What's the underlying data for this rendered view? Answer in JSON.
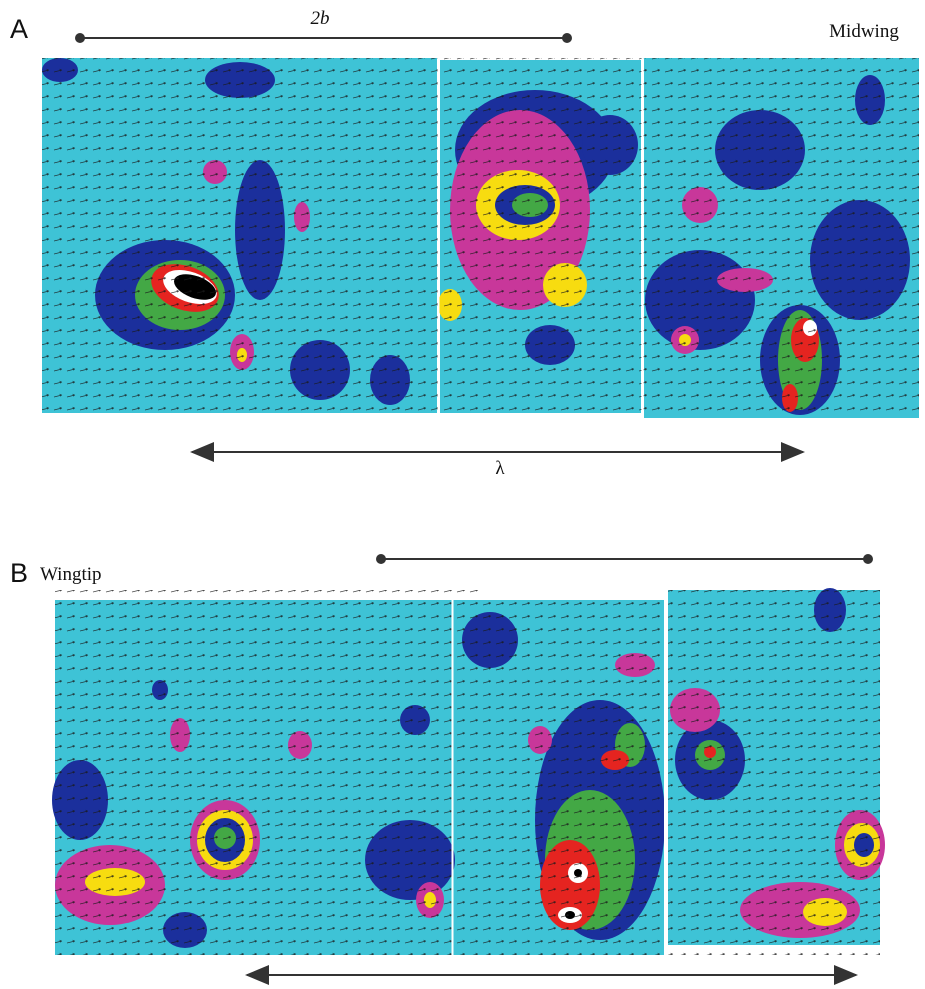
{
  "panels": [
    {
      "letter": "A",
      "scale_label": "2b",
      "title": "Midwing",
      "span_label": "λ"
    },
    {
      "letter": "B",
      "title": "Wingtip"
    }
  ]
}
